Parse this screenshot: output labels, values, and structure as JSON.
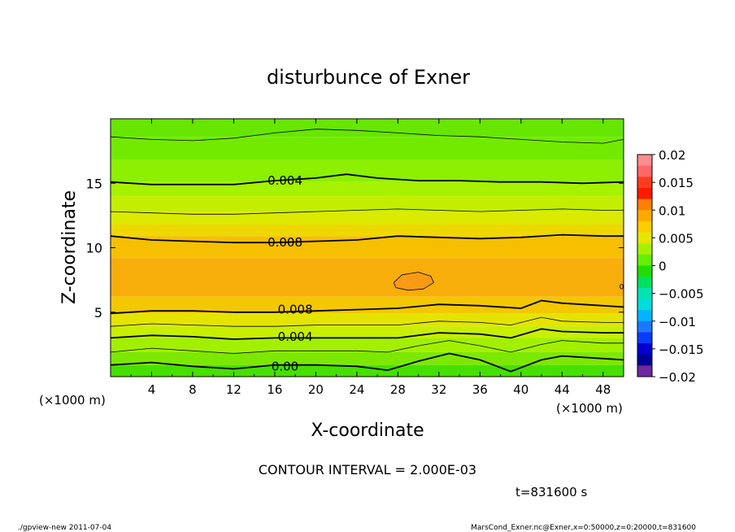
{
  "chart_data": {
    "type": "contour",
    "title": "disturbunce of Exner",
    "xlabel": "X-coordinate",
    "ylabel": "Z-coordinate",
    "x_unit_left": "(×1000 m)",
    "x_unit_right": "(×1000 m)",
    "xlim": [
      0,
      50
    ],
    "ylim": [
      0,
      20
    ],
    "x_ticks": [
      "4",
      "8",
      "12",
      "16",
      "20",
      "24",
      "28",
      "32",
      "36",
      "40",
      "44",
      "48"
    ],
    "y_ticks": [
      "5",
      "10",
      "15"
    ],
    "x_tick_values": [
      4,
      8,
      12,
      16,
      20,
      24,
      28,
      32,
      36,
      40,
      44,
      48
    ],
    "y_tick_values": [
      5,
      10,
      15
    ],
    "contour_interval_text": "CONTOUR INTERVAL = 2.000E-03",
    "time_text": "t=831600 s",
    "contour_labels": [
      {
        "text": "0.004",
        "x": 17,
        "z": 15.2
      },
      {
        "text": "0.008",
        "x": 17,
        "z": 10.4
      },
      {
        "text": "0.008",
        "x": 18,
        "z": 5.2
      },
      {
        "text": "0.004",
        "x": 18,
        "z": 3.1
      },
      {
        "text": "0.00",
        "x": 17,
        "z": 0.8
      },
      {
        "text": "0",
        "x": 49.8,
        "z": 7.1
      }
    ],
    "contour_lines": [
      {
        "level": 0.0,
        "bold": true,
        "points": [
          [
            0,
            0.9
          ],
          [
            4,
            1.1
          ],
          [
            8,
            0.8
          ],
          [
            12,
            0.6
          ],
          [
            16,
            0.9
          ],
          [
            20,
            0.9
          ],
          [
            24,
            0.8
          ],
          [
            27,
            0.5
          ],
          [
            30,
            1.2
          ],
          [
            33,
            1.8
          ],
          [
            36,
            1.3
          ],
          [
            39,
            0.4
          ],
          [
            42,
            1.3
          ],
          [
            44,
            1.6
          ],
          [
            48,
            1.4
          ],
          [
            50,
            1.3
          ]
        ]
      },
      {
        "level": 0.002,
        "bold": false,
        "points": [
          [
            0,
            1.9
          ],
          [
            4,
            2.2
          ],
          [
            8,
            2.0
          ],
          [
            12,
            1.8
          ],
          [
            16,
            2.0
          ],
          [
            20,
            2.0
          ],
          [
            24,
            2.0
          ],
          [
            27,
            1.9
          ],
          [
            30,
            2.4
          ],
          [
            33,
            2.8
          ],
          [
            36,
            2.4
          ],
          [
            39,
            1.9
          ],
          [
            42,
            2.5
          ],
          [
            44,
            2.8
          ],
          [
            48,
            2.6
          ],
          [
            50,
            2.6
          ]
        ]
      },
      {
        "level": 0.004,
        "bold": true,
        "points": [
          [
            0,
            3.0
          ],
          [
            4,
            3.2
          ],
          [
            8,
            3.1
          ],
          [
            12,
            2.9
          ],
          [
            16,
            3.0
          ],
          [
            20,
            3.0
          ],
          [
            24,
            3.0
          ],
          [
            28,
            3.0
          ],
          [
            32,
            3.4
          ],
          [
            36,
            3.3
          ],
          [
            39,
            3.0
          ],
          [
            42,
            3.7
          ],
          [
            44,
            3.5
          ],
          [
            48,
            3.4
          ],
          [
            50,
            3.4
          ]
        ]
      },
      {
        "level": 0.006,
        "bold": false,
        "points": [
          [
            0,
            3.9
          ],
          [
            4,
            4.1
          ],
          [
            8,
            4.0
          ],
          [
            12,
            3.9
          ],
          [
            16,
            3.9
          ],
          [
            20,
            4.0
          ],
          [
            24,
            4.0
          ],
          [
            28,
            4.0
          ],
          [
            32,
            4.3
          ],
          [
            36,
            4.2
          ],
          [
            39,
            4.0
          ],
          [
            42,
            4.6
          ],
          [
            44,
            4.3
          ],
          [
            48,
            4.2
          ],
          [
            50,
            4.2
          ]
        ]
      },
      {
        "level": 0.008,
        "bold": true,
        "points": [
          [
            0,
            4.9
          ],
          [
            4,
            5.1
          ],
          [
            8,
            5.1
          ],
          [
            12,
            5.0
          ],
          [
            16,
            5.0
          ],
          [
            20,
            5.1
          ],
          [
            24,
            5.2
          ],
          [
            28,
            5.3
          ],
          [
            32,
            5.6
          ],
          [
            36,
            5.5
          ],
          [
            40,
            5.3
          ],
          [
            42,
            5.9
          ],
          [
            44,
            5.7
          ],
          [
            48,
            5.5
          ],
          [
            50,
            5.4
          ]
        ]
      },
      {
        "level": 0.01,
        "bold": false,
        "points": [
          [
            27.6,
            7.3
          ],
          [
            28.4,
            7.9
          ],
          [
            30,
            8.1
          ],
          [
            31.2,
            7.8
          ],
          [
            31.5,
            7.3
          ],
          [
            30.5,
            6.8
          ],
          [
            29,
            6.7
          ],
          [
            27.8,
            6.9
          ],
          [
            27.6,
            7.3
          ]
        ]
      },
      {
        "level": 0.008,
        "bold": true,
        "points": [
          [
            0,
            10.9
          ],
          [
            4,
            10.6
          ],
          [
            8,
            10.5
          ],
          [
            12,
            10.4
          ],
          [
            16,
            10.4
          ],
          [
            20,
            10.5
          ],
          [
            24,
            10.6
          ],
          [
            28,
            10.9
          ],
          [
            32,
            10.8
          ],
          [
            36,
            10.7
          ],
          [
            40,
            10.8
          ],
          [
            44,
            11.0
          ],
          [
            48,
            10.9
          ],
          [
            50,
            10.9
          ]
        ]
      },
      {
        "level": 0.006,
        "bold": false,
        "points": [
          [
            0,
            12.8
          ],
          [
            4,
            12.7
          ],
          [
            8,
            12.6
          ],
          [
            12,
            12.6
          ],
          [
            16,
            12.7
          ],
          [
            20,
            12.8
          ],
          [
            24,
            12.9
          ],
          [
            28,
            13.0
          ],
          [
            32,
            12.9
          ],
          [
            36,
            12.8
          ],
          [
            40,
            12.9
          ],
          [
            44,
            13.0
          ],
          [
            48,
            12.9
          ],
          [
            50,
            12.9
          ]
        ]
      },
      {
        "level": 0.004,
        "bold": true,
        "points": [
          [
            0,
            15.1
          ],
          [
            4,
            14.9
          ],
          [
            8,
            14.9
          ],
          [
            12,
            14.9
          ],
          [
            16,
            15.2
          ],
          [
            20,
            15.4
          ],
          [
            23,
            15.7
          ],
          [
            26,
            15.4
          ],
          [
            30,
            15.2
          ],
          [
            34,
            15.2
          ],
          [
            38,
            15.1
          ],
          [
            42,
            15.1
          ],
          [
            46,
            15.0
          ],
          [
            50,
            15.1
          ]
        ]
      },
      {
        "level": 0.002,
        "bold": false,
        "points": [
          [
            0,
            18.6
          ],
          [
            4,
            18.4
          ],
          [
            8,
            18.3
          ],
          [
            12,
            18.5
          ],
          [
            16,
            18.9
          ],
          [
            20,
            19.2
          ],
          [
            24,
            19.1
          ],
          [
            28,
            18.9
          ],
          [
            32,
            18.7
          ],
          [
            36,
            18.6
          ],
          [
            40,
            18.4
          ],
          [
            44,
            18.2
          ],
          [
            48,
            18.1
          ],
          [
            50,
            18.4
          ]
        ]
      }
    ],
    "colorbar": {
      "min": -0.02,
      "max": 0.02,
      "labels": [
        "0.02",
        "0.015",
        "0.01",
        "0.005",
        "0",
        "−0.005",
        "−0.01",
        "−0.015",
        "−0.02"
      ],
      "label_values": [
        0.02,
        0.015,
        0.01,
        0.005,
        0,
        -0.005,
        -0.01,
        -0.015,
        -0.02
      ],
      "colors": [
        "#ff8c8c",
        "#ff6868",
        "#ff3b1e",
        "#ff1a00",
        "#ff7f00",
        "#ffaa00",
        "#ffcc00",
        "#e6e600",
        "#a8f000",
        "#66ee00",
        "#22dd00",
        "#00e060",
        "#00e4b0",
        "#00dcdc",
        "#00b4ff",
        "#1e78ff",
        "#0a3cff",
        "#0000d2",
        "#000096",
        "#6e28a0"
      ]
    },
    "fill_bands": [
      {
        "top": 20.0,
        "bottom": 18.6,
        "color": "#66e600"
      },
      {
        "top": 18.6,
        "bottom": 16.8,
        "color": "#72ea00"
      },
      {
        "top": 16.8,
        "bottom": 15.1,
        "color": "#8cf000"
      },
      {
        "top": 15.1,
        "bottom": 14.0,
        "color": "#a6f200"
      },
      {
        "top": 14.0,
        "bottom": 12.8,
        "color": "#c4ee00"
      },
      {
        "top": 12.8,
        "bottom": 11.8,
        "color": "#dcea00"
      },
      {
        "top": 11.8,
        "bottom": 10.9,
        "color": "#eed800"
      },
      {
        "top": 10.9,
        "bottom": 9.2,
        "color": "#f6c000"
      },
      {
        "top": 9.2,
        "bottom": 6.2,
        "color": "#f8ae0a"
      },
      {
        "top": 6.2,
        "bottom": 4.9,
        "color": "#f3c800"
      },
      {
        "top": 4.9,
        "bottom": 3.9,
        "color": "#e4e400"
      },
      {
        "top": 3.9,
        "bottom": 3.0,
        "color": "#c8ee00"
      },
      {
        "top": 3.0,
        "bottom": 1.9,
        "color": "#a2f000"
      },
      {
        "top": 1.9,
        "bottom": 0.9,
        "color": "#7ce800"
      },
      {
        "top": 0.9,
        "bottom": 0.0,
        "color": "#46e000"
      }
    ],
    "max_region_color": "#f89a14"
  },
  "footer": {
    "left": "./gpview-new   2011-07-04",
    "right": "MarsCond_Exner.nc@Exner,x=0:50000,z=0:20000,t=831600"
  }
}
